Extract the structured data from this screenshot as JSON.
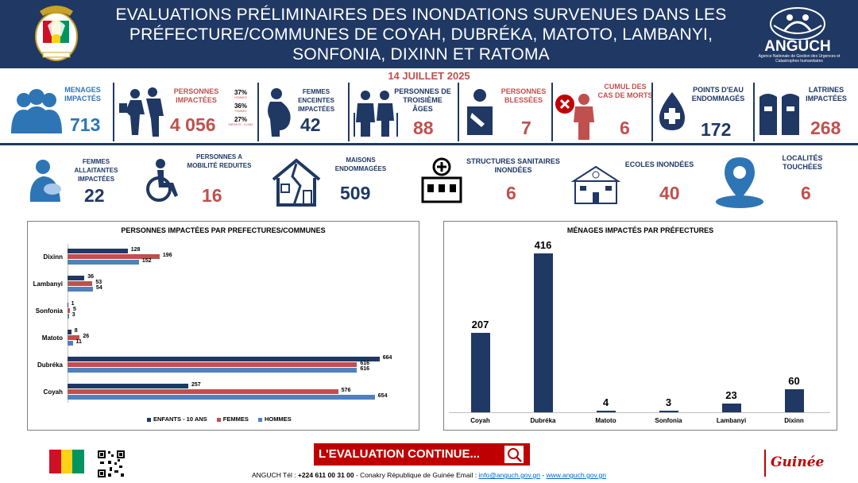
{
  "header": {
    "title": "EVALUATIONS PRÉLIMINAIRES DES INONDATIONS SURVENUES DANS LES PRÉFECTURE/COMMUNES DE COYAH, DUBRÉKA, MATOTO, LAMBANYI, SONFONIA, DIXINN ET RATOMA",
    "org_name": "ANGUCH",
    "org_subtitle": "Agence Nationale de Gestion des Urgences et Catastrophes humanitaires",
    "emblem_text": "TRAVAIL JUSTICE SOLIDARITÉ"
  },
  "date": "14 JUILLET 2025",
  "stats_row1": {
    "menages": {
      "label": "MENAGES IMPACTÉS",
      "value": "713"
    },
    "personnes": {
      "label": "PERSONNES IMPACTÉES",
      "value": "4 056",
      "breakdown": [
        {
          "pct": "37%",
          "label": "HOMMES"
        },
        {
          "pct": "36%",
          "label": "FEMMES"
        },
        {
          "pct": "27%",
          "label": "ENFANTS - 10 ANS"
        }
      ]
    },
    "enceintes": {
      "label": "FEMMES ENCEINTES IMPACTÉES",
      "value": "42"
    },
    "ages": {
      "label": "PERSONNES DE TROISIÈME ÂGES",
      "value": "88"
    },
    "blessees": {
      "label": "PERSONNES BLESSÉES",
      "value": "7"
    },
    "morts": {
      "label": "CUMUL DES CAS DE MORTS",
      "value": "6"
    },
    "eau": {
      "label": "POINTS D'EAU ENDOMMAGÉS",
      "value": "172"
    },
    "latrines": {
      "label": "LATRINES IMPACTÉES",
      "value": "268"
    }
  },
  "stats_row2": {
    "allaitantes": {
      "label": "FEMMES ALLAITANTES IMPACTÉES",
      "value": "22"
    },
    "mobilite": {
      "label": "PERSONNES A MOBILITÉ REDUITES",
      "value": "16"
    },
    "maisons": {
      "label": "MAISONS ENDOMMAGÉES",
      "value": "509"
    },
    "sanitaires": {
      "label": "STRUCTURES SANITAIRES INONDÉES",
      "value": "6"
    },
    "ecoles": {
      "label": "ECOLES INONDÉES",
      "value": "40"
    },
    "localites": {
      "label": "LOCALITÉS TOUCHÉES",
      "value": "6"
    }
  },
  "colors": {
    "navy": "#1f3864",
    "red": "#c0504d",
    "light_blue": "#4f81bd",
    "banner_red": "#c00000"
  },
  "chart_data": [
    {
      "type": "bar",
      "orientation": "horizontal",
      "title": "PERSONNES IMPACTÉES PAR PREFECTURES/COMMUNES",
      "categories": [
        "Dixinn",
        "Lambanyi",
        "Sonfonia",
        "Matoto",
        "Dubréka",
        "Coyah"
      ],
      "series": [
        {
          "name": "ENFANTS - 10 ANS",
          "color": "#1f3864",
          "values": [
            128,
            36,
            1,
            8,
            664,
            257
          ]
        },
        {
          "name": "FEMMES",
          "color": "#c0504d",
          "values": [
            196,
            53,
            5,
            26,
            616,
            576
          ]
        },
        {
          "name": "HOMMES",
          "color": "#4f81bd",
          "values": [
            152,
            54,
            3,
            11,
            616,
            654
          ]
        }
      ],
      "xlim": [
        0,
        700
      ],
      "legend": "bottom"
    },
    {
      "type": "bar",
      "title": "MÉNAGES IMPACTÉS PAR PRÉFECTURES",
      "categories": [
        "Coyah",
        "Dubréka",
        "Matoto",
        "Sonfonia",
        "Lambanyi",
        "Dixinn"
      ],
      "values": [
        207,
        416,
        4,
        3,
        23,
        60
      ],
      "color": "#1f3864",
      "ylim": [
        0,
        416
      ]
    }
  ],
  "footer": {
    "banner": "L'EVALUATION CONTINUE...",
    "contact_prefix": "ANGUCH Tél : ",
    "phone": "+224 611 00 31 00",
    "contact_mid": " - Conakry République de Guinée  Email : ",
    "email": "info@anguch.gov.gn",
    "sep": " - ",
    "website": "www.anguch.gov.gn",
    "guinee": "Guinée"
  }
}
